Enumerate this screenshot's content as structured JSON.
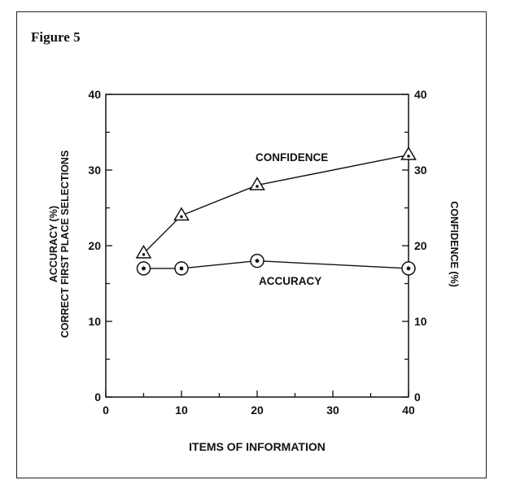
{
  "figure_label": "Figure 5",
  "chart_data": {
    "type": "line",
    "xlabel": "ITEMS OF INFORMATION",
    "ylabel_left": [
      "ACCURACY (%)",
      "CORRECT FIRST PLACE SELECTIONS"
    ],
    "ylabel_right": "CONFIDENCE (%)",
    "x_ticks": [
      "0",
      "10",
      "20",
      "30",
      "40"
    ],
    "y_ticks": [
      "0",
      "10",
      "20",
      "30",
      "40"
    ],
    "xlim": [
      0,
      40
    ],
    "ylim": [
      0,
      40
    ],
    "grid": false,
    "series": [
      {
        "name": "CONFIDENCE",
        "marker": "triangle",
        "x": [
          5,
          10,
          20,
          40
        ],
        "values": [
          19,
          24,
          28,
          32
        ]
      },
      {
        "name": "ACCURACY",
        "marker": "circle",
        "x": [
          5,
          10,
          20,
          40
        ],
        "values": [
          17,
          17,
          18,
          17
        ]
      }
    ],
    "colors": {
      "ink": "#111111",
      "background": "#ffffff"
    }
  }
}
